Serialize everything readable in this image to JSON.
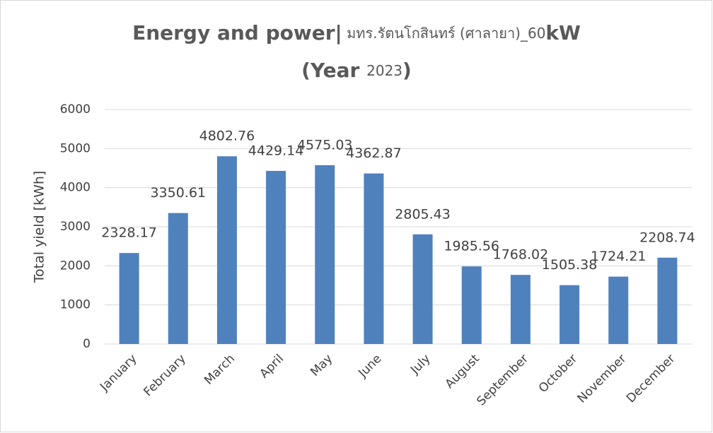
{
  "chart_data": {
    "type": "bar",
    "title": [
      [
        "Energy and power|",
        " มทร.รัตนโกสินทร์ (ศาลายา)_60",
        "kW"
      ],
      [
        "(Year ",
        "2023",
        ")"
      ]
    ],
    "y_label": "Total yield [kWh]",
    "categories": [
      "January",
      "February",
      "March",
      "April",
      "May",
      "June",
      "July",
      "August",
      "September",
      "October",
      "November",
      "December"
    ],
    "values": [
      2328.17,
      3350.61,
      4802.76,
      4429.14,
      4575.03,
      4362.87,
      2805.43,
      1985.56,
      1768.02,
      1505.38,
      1724.21,
      2208.74
    ],
    "color": "#4f81bd",
    "ylim": [
      0,
      6000
    ],
    "yticks": [
      0,
      1000,
      2000,
      3000,
      4000,
      5000,
      6000
    ],
    "grid": true
  }
}
